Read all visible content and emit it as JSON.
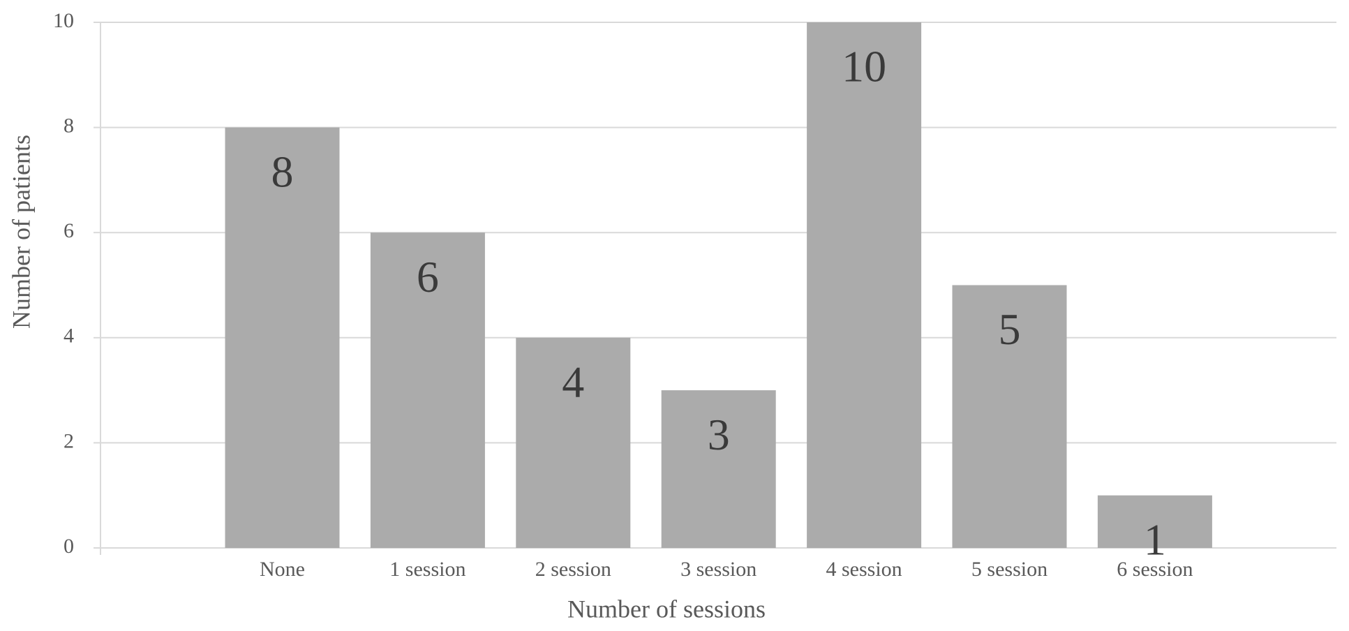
{
  "chart_data": {
    "type": "bar",
    "x_label": "Number of sessions",
    "y_label": "Number of patients",
    "categories": [
      "None",
      "1 session",
      "2 session",
      "3 session",
      "4 session",
      "5 session",
      "6 session"
    ],
    "values": [
      8,
      6,
      4,
      3,
      10,
      5,
      1
    ],
    "color": "#ababab",
    "ylim": [
      0,
      10
    ],
    "yticks": [
      0,
      2,
      4,
      6,
      8,
      10
    ],
    "grid": true
  }
}
